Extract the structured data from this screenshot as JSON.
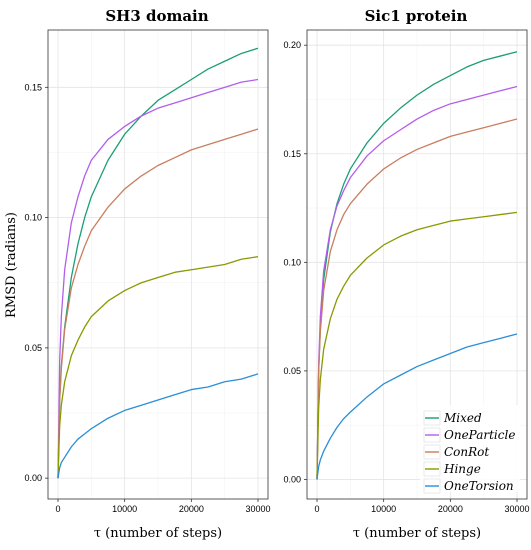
{
  "chart_data": [
    {
      "type": "line",
      "title": "SH3 domain",
      "xlabel": "τ (number of steps)",
      "ylabel": "RMSD (radians)",
      "xlim": [
        -1500,
        31500
      ],
      "ylim": [
        -0.008,
        0.172
      ],
      "xticks": [
        0,
        10000,
        20000,
        30000
      ],
      "xtick_labels": [
        "0",
        "10000",
        "20000",
        "30000"
      ],
      "yticks": [
        0.0,
        0.05,
        0.1,
        0.15
      ],
      "ytick_labels": [
        "0.00",
        "0.05",
        "0.10",
        "0.15"
      ],
      "grid": true,
      "x": [
        0,
        250,
        500,
        1000,
        2000,
        3000,
        4000,
        5000,
        7500,
        10000,
        12500,
        15000,
        17500,
        20000,
        22500,
        25000,
        27500,
        30000
      ],
      "series": [
        {
          "name": "Mixed",
          "color": "#1b9e77",
          "values": [
            0.0,
            0.03,
            0.043,
            0.058,
            0.077,
            0.09,
            0.1,
            0.108,
            0.122,
            0.132,
            0.139,
            0.145,
            0.149,
            0.153,
            0.157,
            0.16,
            0.163,
            0.165
          ]
        },
        {
          "name": "OneParticle",
          "color": "#b35eea",
          "values": [
            0.0,
            0.045,
            0.062,
            0.08,
            0.098,
            0.108,
            0.116,
            0.122,
            0.13,
            0.135,
            0.139,
            0.142,
            0.144,
            0.146,
            0.148,
            0.15,
            0.152,
            0.153
          ]
        },
        {
          "name": "ConRot",
          "color": "#c97e5e",
          "values": [
            0.0,
            0.03,
            0.042,
            0.057,
            0.073,
            0.082,
            0.089,
            0.095,
            0.104,
            0.111,
            0.116,
            0.12,
            0.123,
            0.126,
            0.128,
            0.13,
            0.132,
            0.134
          ]
        },
        {
          "name": "Hinge",
          "color": "#8a9a00",
          "values": [
            0.0,
            0.02,
            0.028,
            0.037,
            0.047,
            0.053,
            0.058,
            0.062,
            0.068,
            0.072,
            0.075,
            0.077,
            0.079,
            0.08,
            0.081,
            0.082,
            0.084,
            0.085
          ]
        },
        {
          "name": "OneTorsion",
          "color": "#2a8fd6",
          "values": [
            0.0,
            0.004,
            0.006,
            0.008,
            0.012,
            0.015,
            0.017,
            0.019,
            0.023,
            0.026,
            0.028,
            0.03,
            0.032,
            0.034,
            0.035,
            0.037,
            0.038,
            0.04
          ]
        }
      ]
    },
    {
      "type": "line",
      "title": "Sic1 protein",
      "xlabel": "τ (number of steps)",
      "ylabel": "",
      "xlim": [
        -1500,
        31500
      ],
      "ylim": [
        -0.009,
        0.207
      ],
      "xticks": [
        0,
        10000,
        20000,
        30000
      ],
      "xtick_labels": [
        "0",
        "10000",
        "20000",
        "30000"
      ],
      "yticks": [
        0.0,
        0.05,
        0.1,
        0.15,
        0.2
      ],
      "ytick_labels": [
        "0.00",
        "0.05",
        "0.10",
        "0.15",
        "0.20"
      ],
      "grid": true,
      "x": [
        0,
        250,
        500,
        1000,
        2000,
        3000,
        4000,
        5000,
        7500,
        10000,
        12500,
        15000,
        17500,
        20000,
        22500,
        25000,
        27500,
        30000
      ],
      "series": [
        {
          "name": "Mixed",
          "color": "#1b9e77",
          "values": [
            0.0,
            0.05,
            0.07,
            0.092,
            0.114,
            0.127,
            0.136,
            0.143,
            0.155,
            0.164,
            0.171,
            0.177,
            0.182,
            0.186,
            0.19,
            0.193,
            0.195,
            0.197
          ]
        },
        {
          "name": "OneParticle",
          "color": "#b35eea",
          "values": [
            0.0,
            0.053,
            0.075,
            0.096,
            0.115,
            0.126,
            0.133,
            0.139,
            0.149,
            0.156,
            0.161,
            0.166,
            0.17,
            0.173,
            0.175,
            0.177,
            0.179,
            0.181
          ]
        },
        {
          "name": "ConRot",
          "color": "#c97e5e",
          "values": [
            0.0,
            0.05,
            0.068,
            0.087,
            0.105,
            0.115,
            0.122,
            0.127,
            0.136,
            0.143,
            0.148,
            0.152,
            0.155,
            0.158,
            0.16,
            0.162,
            0.164,
            0.166
          ]
        },
        {
          "name": "Hinge",
          "color": "#8a9a00",
          "values": [
            0.0,
            0.033,
            0.046,
            0.06,
            0.074,
            0.083,
            0.089,
            0.094,
            0.102,
            0.108,
            0.112,
            0.115,
            0.117,
            0.119,
            0.12,
            0.121,
            0.122,
            0.123
          ]
        },
        {
          "name": "OneTorsion",
          "color": "#2a8fd6",
          "values": [
            0.0,
            0.006,
            0.009,
            0.013,
            0.019,
            0.024,
            0.028,
            0.031,
            0.038,
            0.044,
            0.048,
            0.052,
            0.055,
            0.058,
            0.061,
            0.063,
            0.065,
            0.067
          ]
        }
      ]
    }
  ],
  "legend": {
    "placement": "bottom-right",
    "entries": [
      {
        "name": "Mixed",
        "color": "#1b9e77"
      },
      {
        "name": "OneParticle",
        "color": "#b35eea"
      },
      {
        "name": "ConRot",
        "color": "#c97e5e"
      },
      {
        "name": "Hinge",
        "color": "#8a9a00"
      },
      {
        "name": "OneTorsion",
        "color": "#2a8fd6"
      }
    ]
  }
}
